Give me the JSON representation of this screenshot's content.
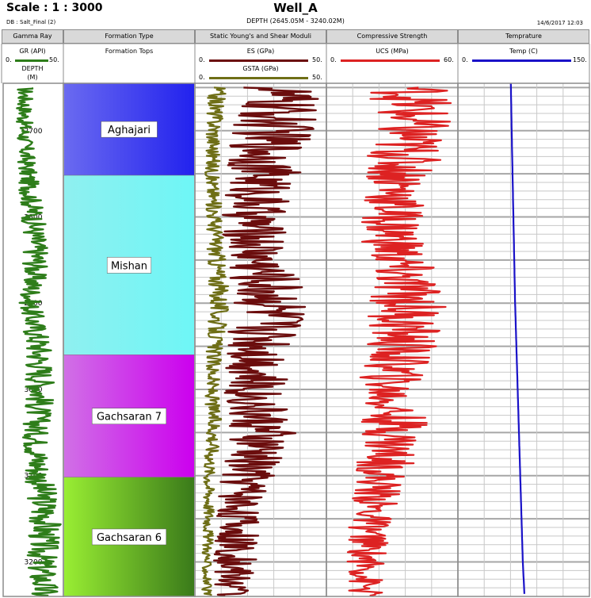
{
  "header": {
    "scale": "Scale : 1 : 3000",
    "well": "Well_A",
    "db": "DB : Salt_Final (2)",
    "depth_range": "DEPTH (2645.05M - 3240.02M)",
    "date": "14/6/2017 12:03"
  },
  "tracks": [
    {
      "title": "Gamma Ray"
    },
    {
      "title": "Formation Type"
    },
    {
      "title": "Static Young's and Shear Moduli"
    },
    {
      "title": "Compressive Strength"
    },
    {
      "title": "Temprature"
    }
  ],
  "legends": {
    "gr": {
      "name": "GR (API)",
      "min": "0.",
      "max": "50.",
      "color": "#2e7d1a"
    },
    "depth": {
      "name": "DEPTH",
      "unit": "(M)"
    },
    "formation": {
      "name": "Formation Tops"
    },
    "es": {
      "name": "ES (GPa)",
      "min": "0.",
      "max": "50.",
      "color": "#6b0d0d"
    },
    "gsta": {
      "name": "GSTA (GPa)",
      "min": "0.",
      "max": "50.",
      "color": "#6e6e16"
    },
    "ucs": {
      "name": "UCS (MPa)",
      "min": "0.",
      "max": "60.",
      "color": "#dd2222"
    },
    "temp": {
      "name": "Temp (C)",
      "min": "0.",
      "max": "150.",
      "color": "#1a12c8"
    }
  },
  "chart_data": {
    "type": "line",
    "depth_range": [
      2645.05,
      3240.02
    ],
    "depth_ticks": [
      2700,
      2800,
      2900,
      3000,
      3100,
      3200
    ],
    "depth_tick_labels": [
      "2700",
      "2800",
      "2900",
      "3000",
      "3100",
      "3200"
    ],
    "formations": [
      {
        "name": "Aghajari",
        "top": 2645.05,
        "base": 2752,
        "colors": [
          "#6a6af0",
          "#2222ee"
        ]
      },
      {
        "name": "Mishan",
        "top": 2752,
        "base": 2960,
        "colors": [
          "#8ff0f0",
          "#6ef6f6"
        ]
      },
      {
        "name": "Gachsaran 7",
        "top": 2960,
        "base": 3102,
        "colors": [
          "#d070e6",
          "#cc00ee"
        ]
      },
      {
        "name": "Gachsaran 6",
        "top": 3102,
        "base": 3240.02,
        "colors": [
          "#99ee33",
          "#3a7a1a"
        ]
      }
    ],
    "series": [
      {
        "name": "GR (API)",
        "xlim": [
          0,
          50
        ],
        "depth": [
          2650,
          2700,
          2750,
          2800,
          2850,
          2900,
          2950,
          3000,
          3050,
          3100,
          3150,
          3200,
          3240
        ],
        "values": [
          18,
          17,
          20,
          25,
          28,
          22,
          30,
          32,
          27,
          30,
          36,
          32,
          34
        ]
      },
      {
        "name": "ES (GPa)",
        "xlim": [
          0,
          50
        ],
        "depth": [
          2650,
          2700,
          2750,
          2800,
          2850,
          2900,
          2950,
          3000,
          3050,
          3100,
          3150,
          3200,
          3240
        ],
        "values": [
          32,
          30,
          26,
          22,
          24,
          30,
          26,
          22,
          25,
          20,
          16,
          15,
          14
        ]
      },
      {
        "name": "GSTA (GPa)",
        "xlim": [
          0,
          50
        ],
        "depth": [
          2650,
          2700,
          2750,
          2800,
          2850,
          2900,
          2950,
          3000,
          3050,
          3100,
          3150,
          3200,
          3240
        ],
        "values": [
          8,
          7,
          6,
          7,
          8,
          9,
          7,
          6,
          7,
          5,
          5,
          4,
          4
        ]
      },
      {
        "name": "UCS (MPa)",
        "xlim": [
          0,
          60
        ],
        "depth": [
          2650,
          2700,
          2750,
          2800,
          2850,
          2900,
          2950,
          3000,
          3050,
          3100,
          3150,
          3200,
          3240
        ],
        "values": [
          40,
          38,
          34,
          30,
          32,
          38,
          34,
          28,
          32,
          25,
          20,
          18,
          17
        ]
      },
      {
        "name": "Temp (C)",
        "xlim": [
          0,
          150
        ],
        "depth": [
          2645,
          2700,
          2800,
          2900,
          3000,
          3100,
          3200,
          3240
        ],
        "values": [
          60,
          61,
          63,
          65,
          68,
          71,
          74,
          76
        ]
      }
    ]
  }
}
